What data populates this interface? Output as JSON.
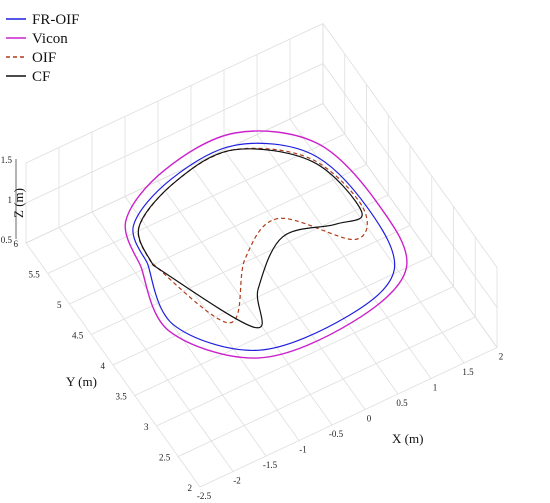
{
  "chart_data": {
    "type": "line",
    "projection": "3d",
    "title": "",
    "xlabel": "X (m)",
    "ylabel": "Y (m)",
    "zlabel": "Z (m)",
    "xlim": [
      -2.5,
      2
    ],
    "ylim": [
      2,
      6
    ],
    "zlim": [
      0.5,
      1.5
    ],
    "x_ticks": [
      "-2.5",
      "-2",
      "-1.5",
      "-1",
      "-0.5",
      "0",
      "0.5",
      "1",
      "1.5",
      "2"
    ],
    "y_ticks": [
      "2",
      "2.5",
      "3",
      "3.5",
      "4",
      "4.5",
      "5",
      "5.5",
      "6"
    ],
    "z_ticks": [
      "0.5",
      "1",
      "1.5"
    ],
    "grid": true,
    "legend_position": "top-left",
    "series": [
      {
        "name": "FR-OIF",
        "color": "#1f1fe0",
        "dash": "solid",
        "points": [
          [
            -1.45,
            4.8
          ],
          [
            -1.3,
            5.35
          ],
          [
            -0.5,
            5.7
          ],
          [
            0.5,
            5.75
          ],
          [
            1.3,
            5.2
          ],
          [
            1.5,
            4.2
          ],
          [
            1.3,
            3.3
          ],
          [
            0.4,
            3.0
          ],
          [
            -0.9,
            3.1
          ],
          [
            -1.65,
            3.9
          ],
          [
            -1.45,
            4.8
          ]
        ]
      },
      {
        "name": "Vicon",
        "color": "#cc22cc",
        "dash": "solid",
        "points": [
          [
            -1.55,
            4.8
          ],
          [
            -1.35,
            5.45
          ],
          [
            -0.5,
            5.85
          ],
          [
            0.6,
            5.9
          ],
          [
            1.45,
            5.3
          ],
          [
            1.65,
            4.2
          ],
          [
            1.45,
            3.25
          ],
          [
            0.4,
            2.9
          ],
          [
            -0.95,
            3.0
          ],
          [
            -1.75,
            3.85
          ],
          [
            -1.55,
            4.8
          ]
        ]
      },
      {
        "name": "OIF",
        "color": "#b03a1a",
        "dash": "dashed",
        "points": [
          [
            -1.4,
            4.8
          ],
          [
            -1.25,
            5.3
          ],
          [
            -0.45,
            5.65
          ],
          [
            0.45,
            5.7
          ],
          [
            1.25,
            5.15
          ],
          [
            1.45,
            4.25
          ],
          [
            1.1,
            3.9
          ],
          [
            0.4,
            4.6
          ],
          [
            -0.3,
            4.3
          ],
          [
            -1.0,
            3.6
          ],
          [
            -1.4,
            4.8
          ]
        ]
      },
      {
        "name": "CF",
        "color": "#111111",
        "dash": "solid",
        "points": [
          [
            -1.4,
            4.75
          ],
          [
            -1.25,
            5.3
          ],
          [
            -0.45,
            5.65
          ],
          [
            0.45,
            5.7
          ],
          [
            1.25,
            5.1
          ],
          [
            1.4,
            4.2
          ],
          [
            1.0,
            4.2
          ],
          [
            0.3,
            4.35
          ],
          [
            -0.4,
            3.85
          ],
          [
            -0.75,
            3.4
          ],
          [
            -1.4,
            4.75
          ]
        ]
      }
    ]
  }
}
